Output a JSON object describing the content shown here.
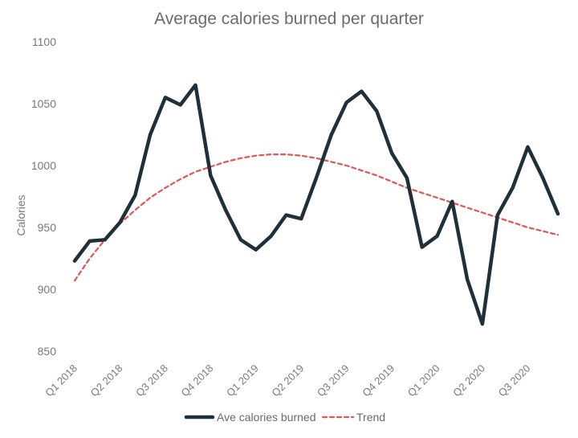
{
  "chart_data": {
    "type": "line",
    "title": "Average calories burned per quarter",
    "xlabel": "",
    "ylabel": "Calories",
    "ylim": [
      850,
      1100
    ],
    "yticks": [
      850,
      900,
      950,
      1000,
      1050,
      1100
    ],
    "grid": false,
    "legend_position": "bottom",
    "x_ticks": [
      "Q1 2018",
      "Q2 2018",
      "Q3 2018",
      "Q4 2018",
      "Q1 2019",
      "Q2 2019",
      "Q3 2019",
      "Q4 2019",
      "Q1 2020",
      "Q2 2020",
      "Q3 2020"
    ],
    "x_tick_indices": [
      0,
      3,
      6,
      9,
      12,
      15,
      18,
      21,
      24,
      27,
      30
    ],
    "x_count": 33,
    "series": [
      {
        "name": "Ave calories burned",
        "style": "solid",
        "color": "#1f3038",
        "values": [
          923,
          939,
          940,
          954,
          976,
          1025,
          1055,
          1049,
          1065,
          992,
          964,
          940,
          932,
          943,
          960,
          957,
          990,
          1025,
          1051,
          1060,
          1044,
          1010,
          990,
          934,
          943,
          971,
          908,
          872,
          960,
          982,
          1015,
          990,
          961
        ]
      },
      {
        "name": "Trend",
        "style": "dashed",
        "color": "#e05555",
        "values": [
          907,
          925,
          940,
          953,
          964,
          974,
          982,
          989,
          995,
          999,
          1003,
          1006,
          1008,
          1009,
          1009,
          1008,
          1006,
          1003,
          1000,
          996,
          992,
          987,
          982,
          978,
          974,
          970,
          966,
          962,
          958,
          954,
          950,
          947,
          944
        ]
      }
    ]
  }
}
